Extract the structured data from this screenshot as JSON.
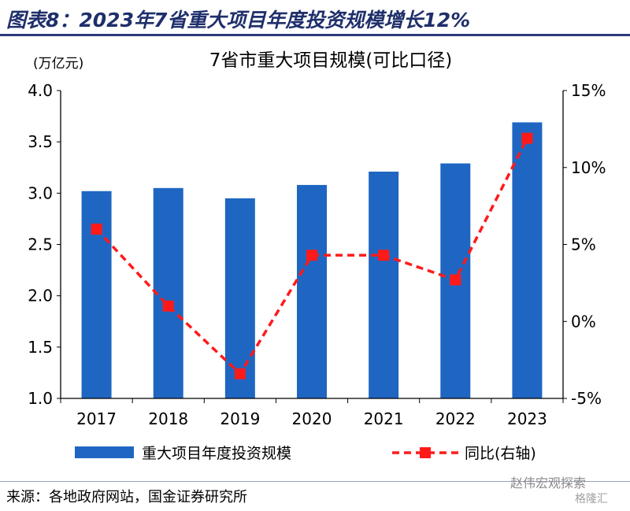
{
  "figure_title": "图表8：2023年7省重大项目年度投资规模增长12%",
  "source_note": "来源：各地政府网站，国金证券研究所",
  "watermark": "赵伟宏观探索",
  "watermark2": "格隆汇",
  "colors": {
    "bar": "#1f66c2",
    "line": "#ff1a1a",
    "title": "#1f2f6b"
  },
  "chart_data": {
    "type": "bar",
    "title": "7省市重大项目规模(可比口径)",
    "ylabel_left": "(万亿元)",
    "categories": [
      "2017",
      "2018",
      "2019",
      "2020",
      "2021",
      "2022",
      "2023"
    ],
    "series": [
      {
        "name": "重大项目年度投资规模",
        "type": "bar",
        "axis": "left",
        "values": [
          3.02,
          3.05,
          2.95,
          3.08,
          3.21,
          3.29,
          3.69
        ]
      },
      {
        "name": "同比(右轴)",
        "type": "line",
        "axis": "right",
        "values": [
          6.0,
          1.0,
          -3.4,
          4.3,
          4.3,
          2.7,
          11.9
        ]
      }
    ],
    "ylim_left": [
      1.0,
      4.0
    ],
    "yticks_left": [
      "1.0",
      "1.5",
      "2.0",
      "2.5",
      "3.0",
      "3.5",
      "4.0"
    ],
    "ylim_right": [
      -5,
      15
    ],
    "yticks_right": [
      "-5%",
      "0%",
      "5%",
      "10%",
      "15%"
    ],
    "grid": false,
    "legend_position": "bottom"
  }
}
